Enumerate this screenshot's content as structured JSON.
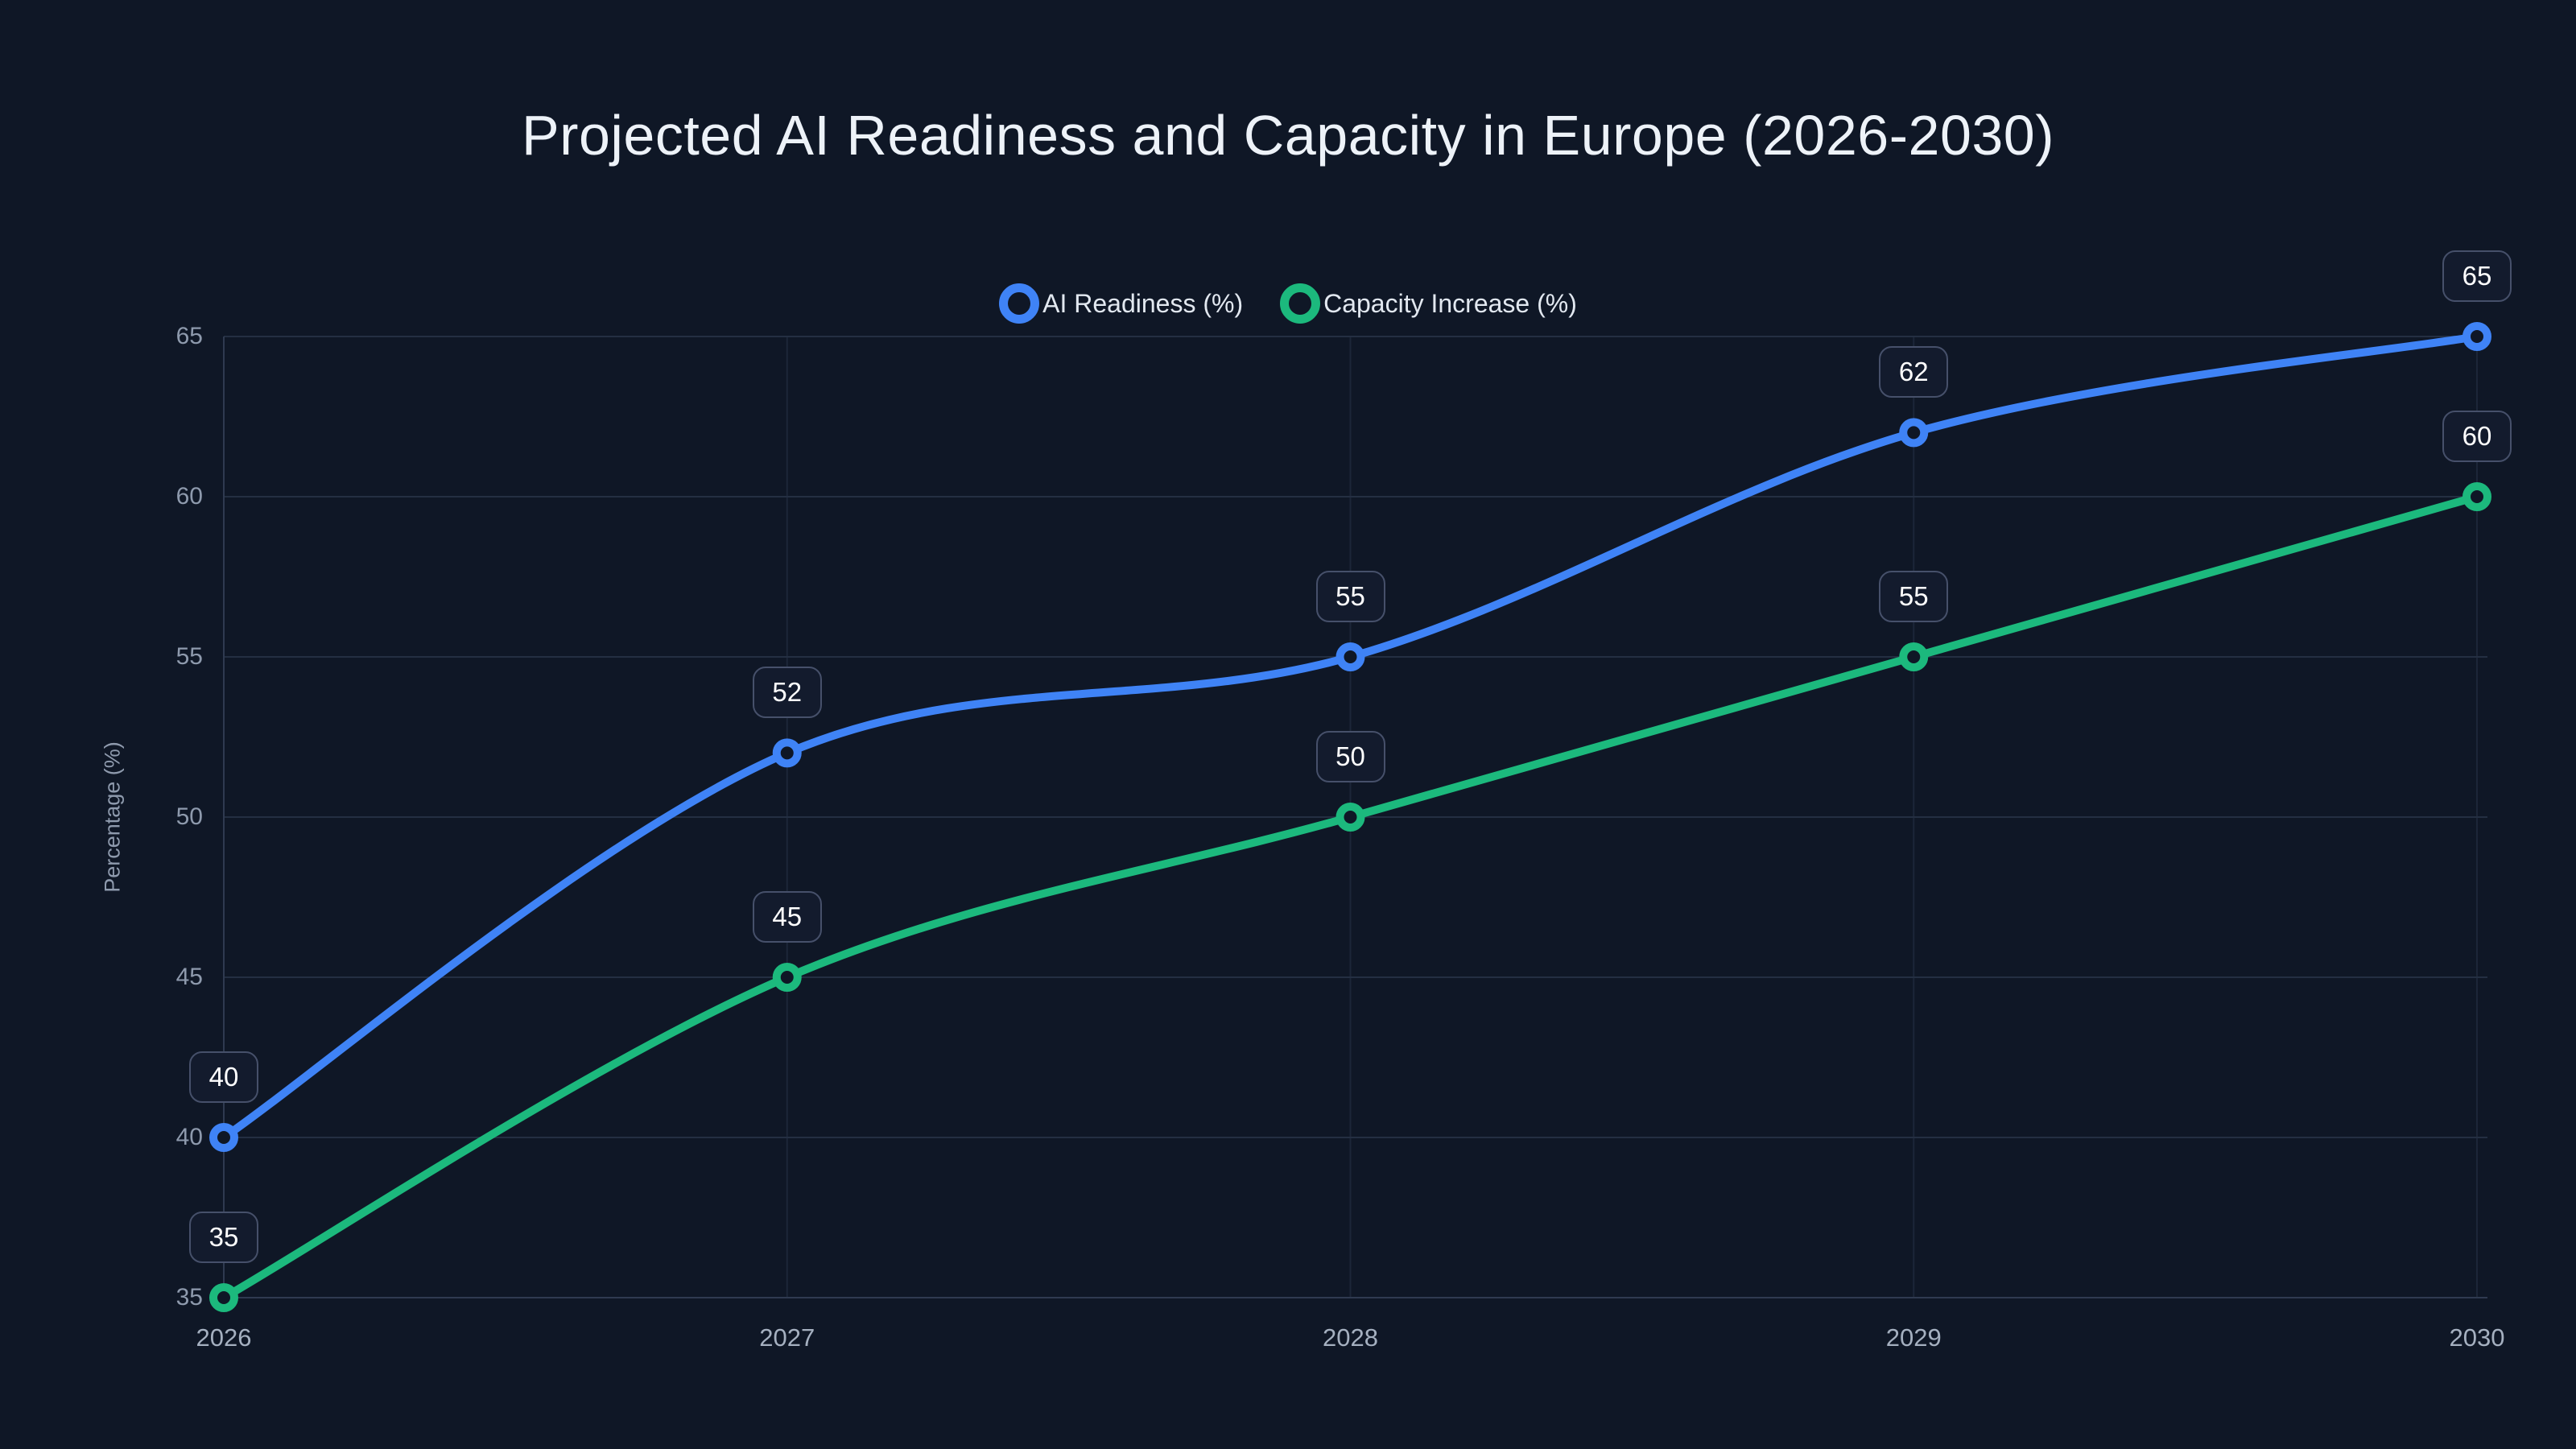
{
  "chart_data": {
    "type": "line",
    "title": "Projected AI Readiness and Capacity in Europe (2026-2030)",
    "categories": [
      "2026",
      "2027",
      "2028",
      "2029",
      "2030"
    ],
    "series": [
      {
        "name": "AI Readiness (%)",
        "values": [
          40,
          52,
          55,
          62,
          65
        ],
        "color": "#3f83f6"
      },
      {
        "name": "Capacity Increase (%)",
        "values": [
          35,
          45,
          50,
          55,
          60
        ],
        "color": "#1cb97d"
      }
    ],
    "xlabel": "",
    "ylabel": "Percentage (%)",
    "ylim": [
      35,
      65
    ],
    "y_ticks": [
      35,
      40,
      45,
      50,
      55,
      60,
      65
    ],
    "grid": true,
    "smooth_lines": true,
    "data_labels": true,
    "legend_position": "top-center",
    "marker_style": "open-circle"
  },
  "colors": {
    "background": "#0f1726",
    "title_text": "#edf2f8",
    "legend_text": "#e2e8f0",
    "tick_text": "#8e9aad",
    "x_tick_text": "#a5b0c0",
    "grid_horizontal": "#242f42",
    "grid_vertical": "#1c2638",
    "axis_line": "#2f3a50",
    "label_box_bg": "#131b2d",
    "label_box_border": "#46506a",
    "label_box_text": "#ffffff"
  }
}
